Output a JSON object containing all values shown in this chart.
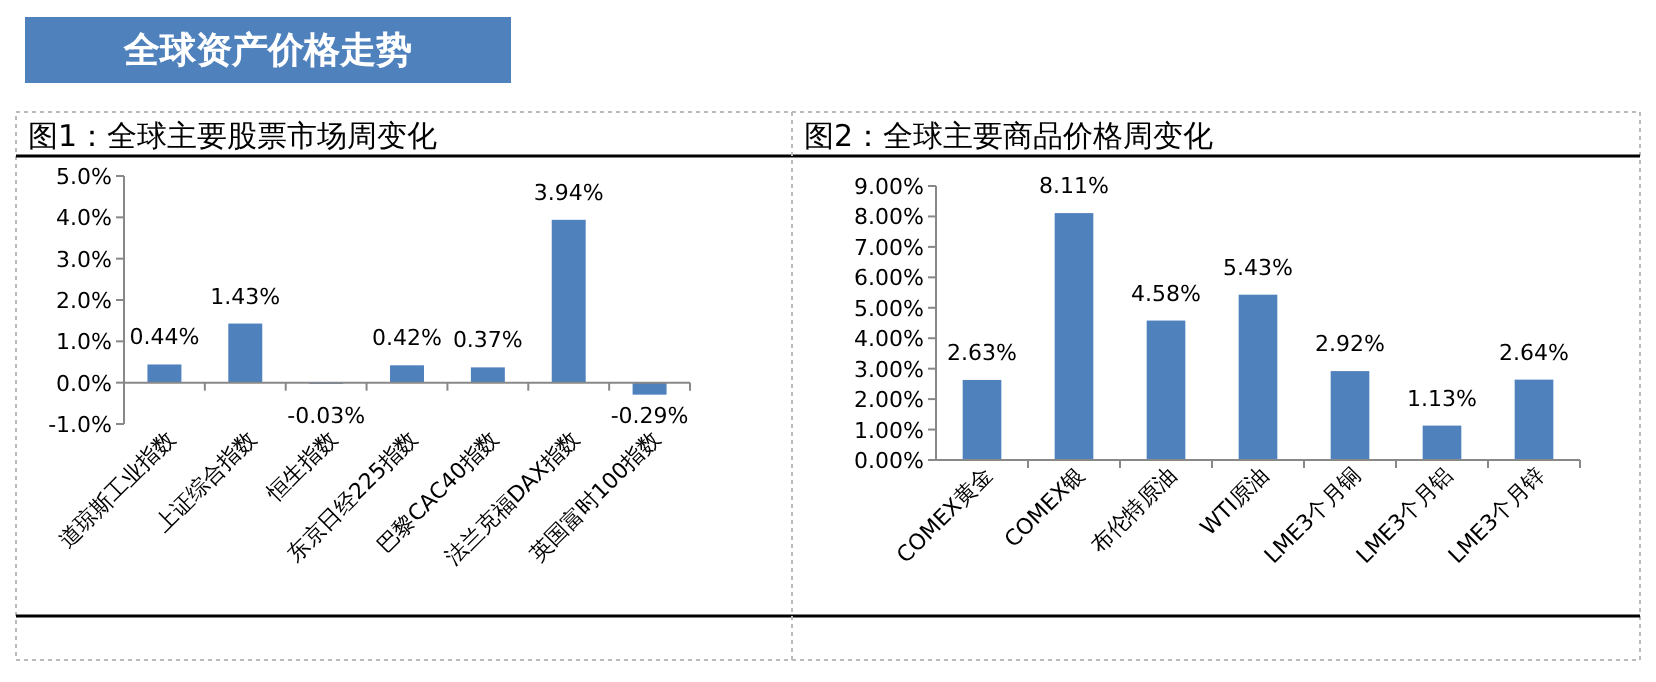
{
  "chart_data": [
    {
      "type": "bar",
      "title": "图1：全球主要股票市场周变化",
      "annotations": [
        "全球资产价格走势"
      ],
      "categories": [
        "道琼斯工业指数",
        "上证综合指数",
        "恒生指数",
        "东京日经225指数",
        "巴黎CAC40指数",
        "法兰克福DAX指数",
        "英国富时100指数"
      ],
      "series": [
        {
          "color": "#4f81bd",
          "values": [
            0.44,
            1.43,
            -0.03,
            0.42,
            0.37,
            3.94,
            -0.29
          ],
          "value_labels": [
            "0.44%",
            "1.43%",
            "-0.03%",
            "0.42%",
            "0.37%",
            "3.94%",
            "-0.29%"
          ]
        }
      ],
      "ylim": [
        -1,
        5
      ],
      "yticks": [
        {
          "value": -1,
          "label": "-1.0%"
        },
        {
          "value": 0,
          "label": "0.0%"
        },
        {
          "value": 1,
          "label": "1.0%"
        },
        {
          "value": 2,
          "label": "2.0%"
        },
        {
          "value": 3,
          "label": "3.0%"
        },
        {
          "value": 4,
          "label": "4.0%"
        },
        {
          "value": 5,
          "label": "5.0%"
        }
      ],
      "grid": false
    },
    {
      "type": "bar",
      "title": "图2：全球主要商品价格周变化",
      "categories": [
        "COMEX黄金",
        "COMEX银",
        "布伦特原油",
        "WTI原油",
        "LME3个月铜",
        "LME3个月铝",
        "LME3个月锌"
      ],
      "series": [
        {
          "color": "#4f81bd",
          "values": [
            2.63,
            8.11,
            4.58,
            5.43,
            2.92,
            1.13,
            2.64
          ],
          "value_labels": [
            "2.63%",
            "8.11%",
            "4.58%",
            "5.43%",
            "2.92%",
            "1.13%",
            "2.64%"
          ]
        }
      ],
      "ylim": [
        0,
        9
      ],
      "yticks": [
        {
          "value": 0,
          "label": "0.00%"
        },
        {
          "value": 1,
          "label": "1.00%"
        },
        {
          "value": 2,
          "label": "2.00%"
        },
        {
          "value": 3,
          "label": "3.00%"
        },
        {
          "value": 4,
          "label": "4.00%"
        },
        {
          "value": 5,
          "label": "5.00%"
        },
        {
          "value": 6,
          "label": "6.00%"
        },
        {
          "value": 7,
          "label": "7.00%"
        },
        {
          "value": 8,
          "label": "8.00%"
        },
        {
          "value": 9,
          "label": "9.00%"
        }
      ],
      "grid": false
    }
  ]
}
